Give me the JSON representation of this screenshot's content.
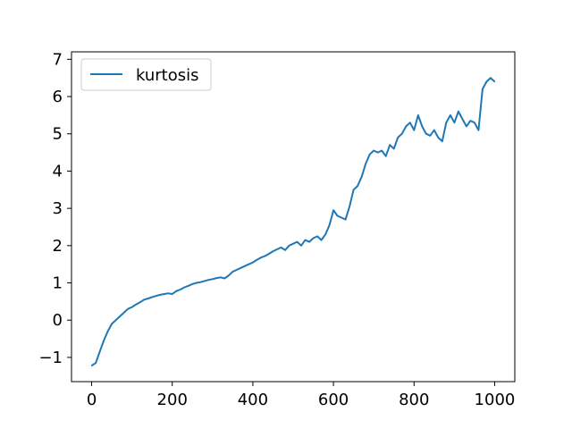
{
  "chart_data": {
    "type": "line",
    "title": "",
    "xlabel": "",
    "ylabel": "",
    "xlim": [
      -50,
      1050
    ],
    "ylim": [
      -1.65,
      7.2
    ],
    "x_ticks": [
      0,
      200,
      400,
      600,
      800,
      1000
    ],
    "y_ticks": [
      -1,
      0,
      1,
      2,
      3,
      4,
      5,
      6,
      7
    ],
    "x_tick_labels": [
      "0",
      "200",
      "400",
      "600",
      "800",
      "1000"
    ],
    "y_tick_labels": [
      "−1",
      "0",
      "1",
      "2",
      "3",
      "4",
      "5",
      "6",
      "7"
    ],
    "grid": false,
    "legend": {
      "placement": "top-left",
      "entries": [
        "kurtosis"
      ]
    },
    "series": [
      {
        "name": "kurtosis",
        "color": "#1f77b4",
        "x": [
          0,
          10,
          20,
          30,
          40,
          50,
          60,
          70,
          80,
          90,
          100,
          110,
          120,
          130,
          140,
          150,
          160,
          170,
          180,
          190,
          200,
          210,
          220,
          230,
          240,
          250,
          260,
          270,
          280,
          290,
          300,
          310,
          320,
          330,
          340,
          350,
          360,
          370,
          380,
          390,
          400,
          410,
          420,
          430,
          440,
          450,
          460,
          470,
          480,
          490,
          500,
          510,
          520,
          530,
          540,
          550,
          560,
          570,
          580,
          590,
          600,
          610,
          620,
          630,
          640,
          650,
          660,
          670,
          680,
          690,
          700,
          710,
          720,
          730,
          740,
          750,
          760,
          770,
          780,
          790,
          800,
          810,
          820,
          830,
          840,
          850,
          860,
          870,
          880,
          890,
          900,
          910,
          920,
          930,
          940,
          950,
          960,
          970,
          980,
          990,
          1000
        ],
        "y": [
          -1.22,
          -1.15,
          -0.85,
          -0.55,
          -0.3,
          -0.1,
          0.0,
          0.1,
          0.2,
          0.3,
          0.35,
          0.42,
          0.48,
          0.55,
          0.58,
          0.62,
          0.65,
          0.68,
          0.7,
          0.72,
          0.7,
          0.78,
          0.82,
          0.88,
          0.92,
          0.97,
          1.0,
          1.02,
          1.05,
          1.08,
          1.1,
          1.13,
          1.15,
          1.12,
          1.2,
          1.3,
          1.35,
          1.4,
          1.45,
          1.5,
          1.55,
          1.62,
          1.68,
          1.72,
          1.78,
          1.85,
          1.9,
          1.95,
          1.88,
          2.0,
          2.05,
          2.1,
          2.0,
          2.15,
          2.1,
          2.2,
          2.25,
          2.15,
          2.3,
          2.55,
          2.95,
          2.8,
          2.75,
          2.7,
          3.05,
          3.5,
          3.6,
          3.85,
          4.2,
          4.45,
          4.55,
          4.5,
          4.55,
          4.4,
          4.7,
          4.6,
          4.9,
          5.0,
          5.2,
          5.3,
          5.1,
          5.5,
          5.2,
          5.0,
          4.95,
          5.1,
          4.9,
          4.8,
          5.3,
          5.5,
          5.3,
          5.6,
          5.4,
          5.2,
          5.35,
          5.3,
          5.1,
          6.2,
          6.4,
          6.5,
          6.4
        ]
      }
    ]
  }
}
